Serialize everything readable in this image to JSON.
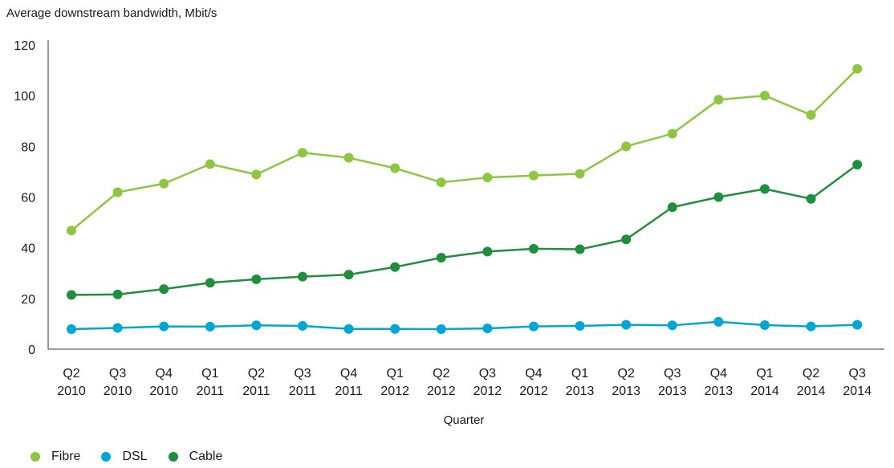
{
  "chart_data": {
    "type": "line",
    "ylabel": "Average downstream bandwidth, Mbit/s",
    "xlabel": "Quarter",
    "ylim": [
      0,
      120
    ],
    "yticks": [
      0,
      20,
      40,
      60,
      80,
      100,
      120
    ],
    "grid": false,
    "legend_position": "bottom-left",
    "categories": [
      {
        "q": "Q2",
        "year": "2010"
      },
      {
        "q": "Q3",
        "year": "2010"
      },
      {
        "q": "Q4",
        "year": "2010"
      },
      {
        "q": "Q1",
        "year": "2011"
      },
      {
        "q": "Q2",
        "year": "2011"
      },
      {
        "q": "Q3",
        "year": "2011"
      },
      {
        "q": "Q4",
        "year": "2011"
      },
      {
        "q": "Q1",
        "year": "2012"
      },
      {
        "q": "Q2",
        "year": "2012"
      },
      {
        "q": "Q3",
        "year": "2012"
      },
      {
        "q": "Q4",
        "year": "2012"
      },
      {
        "q": "Q1",
        "year": "2013"
      },
      {
        "q": "Q2",
        "year": "2013"
      },
      {
        "q": "Q3",
        "year": "2013"
      },
      {
        "q": "Q4",
        "year": "2013"
      },
      {
        "q": "Q1",
        "year": "2014"
      },
      {
        "q": "Q2",
        "year": "2014"
      },
      {
        "q": "Q3",
        "year": "2014"
      }
    ],
    "series": [
      {
        "name": "Fibre",
        "color": "#8dc63f",
        "values": [
          46.8,
          61.9,
          65.3,
          73.0,
          68.9,
          77.5,
          75.5,
          71.4,
          65.8,
          67.7,
          68.5,
          69.2,
          80.0,
          85.0,
          98.4,
          100.0,
          92.4,
          110.6
        ]
      },
      {
        "name": "DSL",
        "color": "#00a6d6",
        "values": [
          7.9,
          8.4,
          9.0,
          8.9,
          9.4,
          9.2,
          8.0,
          8.0,
          7.9,
          8.2,
          9.0,
          9.2,
          9.6,
          9.4,
          10.8,
          9.5,
          9.0,
          9.6
        ]
      },
      {
        "name": "Cable",
        "color": "#1f8f3f",
        "values": [
          21.4,
          21.6,
          23.7,
          26.2,
          27.6,
          28.6,
          29.4,
          32.4,
          36.1,
          38.5,
          39.6,
          39.4,
          43.3,
          56.0,
          60.0,
          63.2,
          59.3,
          72.8
        ]
      }
    ]
  }
}
